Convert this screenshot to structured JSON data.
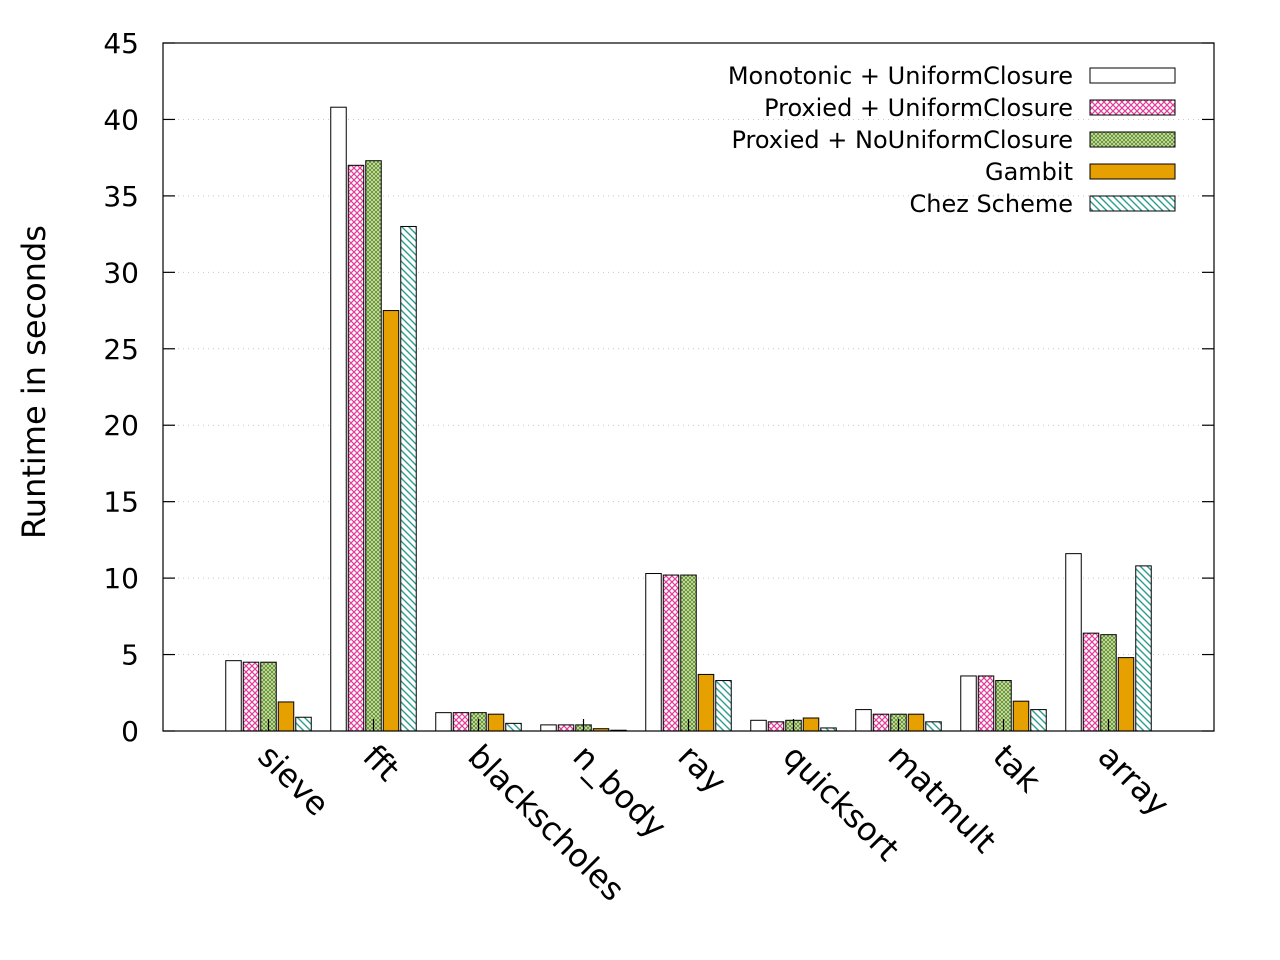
{
  "chart_data": {
    "type": "bar",
    "title": "",
    "xlabel": "",
    "ylabel": "Runtime in seconds",
    "ylim": [
      0,
      45
    ],
    "yticks": [
      0,
      5,
      10,
      15,
      20,
      25,
      30,
      35,
      40,
      45
    ],
    "grid": true,
    "legend_position": "top-right",
    "categories": [
      "sieve",
      "fft",
      "blackscholes",
      "n_body",
      "ray",
      "quicksort",
      "matmult",
      "tak",
      "array"
    ],
    "series": [
      {
        "name": "Monotonic + UniformClosure",
        "pattern": "empty",
        "color": "#000000",
        "values": [
          4.6,
          40.8,
          1.2,
          0.4,
          10.3,
          0.7,
          1.4,
          3.6,
          11.6
        ]
      },
      {
        "name": "Proxied + UniformClosure",
        "pattern": "crosshatch",
        "color": "#e0409a",
        "values": [
          4.5,
          37.0,
          1.2,
          0.4,
          10.2,
          0.6,
          1.1,
          3.6,
          6.4
        ]
      },
      {
        "name": "Proxied + NoUniformClosure",
        "pattern": "fine-crosshatch",
        "color": "#5a8a2a",
        "values": [
          4.5,
          37.3,
          1.2,
          0.4,
          10.2,
          0.7,
          1.1,
          3.3,
          6.3
        ]
      },
      {
        "name": "Gambit",
        "pattern": "solid",
        "color": "#e6a000",
        "values": [
          1.9,
          27.5,
          1.1,
          0.15,
          3.7,
          0.85,
          1.1,
          1.95,
          4.8
        ]
      },
      {
        "name": "Chez Scheme",
        "pattern": "diagonal",
        "color": "#2a9d8f",
        "values": [
          0.9,
          33.0,
          0.5,
          0.05,
          3.3,
          0.2,
          0.6,
          1.4,
          10.8
        ]
      }
    ]
  }
}
